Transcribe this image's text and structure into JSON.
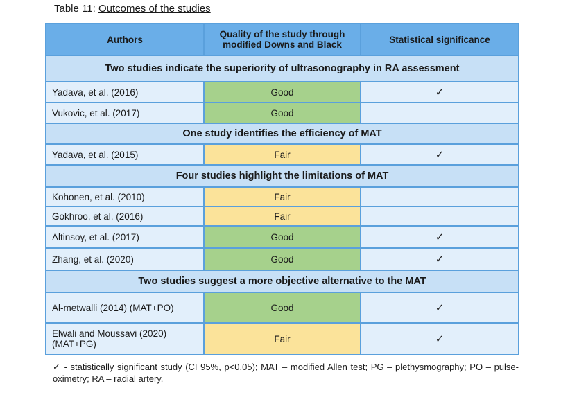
{
  "caption": {
    "prefix": "Table 11: ",
    "title": "Outcomes of the studies"
  },
  "headers": {
    "authors": "Authors",
    "quality": "Quality of the study through modified Downs and Black",
    "significance": "Statistical significance"
  },
  "sections": [
    {
      "title": "Two studies indicate the superiority of ultrasonography in RA assessment",
      "rows": [
        {
          "author": "Yadava, et al. (2016)",
          "quality": "Good",
          "sig": "✓"
        },
        {
          "author": "Vukovic, et al. (2017)",
          "quality": "Good",
          "sig": ""
        }
      ]
    },
    {
      "title": "One study identifies the efficiency of MAT",
      "rows": [
        {
          "author": "Yadava, et al. (2015)",
          "quality": "Fair",
          "sig": "✓"
        }
      ]
    },
    {
      "title": "Four studies highlight the limitations of MAT",
      "rows": [
        {
          "author": "Kohonen, et al. (2010)",
          "quality": "Fair",
          "sig": ""
        },
        {
          "author": "Gokhroo, et al. (2016)",
          "quality": "Fair",
          "sig": ""
        },
        {
          "author": "Altinsoy, et al. (2017)",
          "quality": "Good",
          "sig": "✓"
        },
        {
          "author": "Zhang, et al. (2020)",
          "quality": "Good",
          "sig": "✓"
        }
      ]
    },
    {
      "title": "Two studies suggest a more objective alternative to the MAT",
      "rows": [
        {
          "author": "Al-metwalli (2014) (MAT+PO)",
          "quality": "Good",
          "sig": "✓"
        },
        {
          "author": "Elwali and Moussavi (2020) (MAT+PG)",
          "quality": "Fair",
          "sig": "✓"
        }
      ]
    }
  ],
  "footnote": "✓ - statistically significant study (CI 95%, p<0.05); MAT – modified Allen test; PG – plethysmography; PO – pulse-oximetry; RA – radial artery."
}
